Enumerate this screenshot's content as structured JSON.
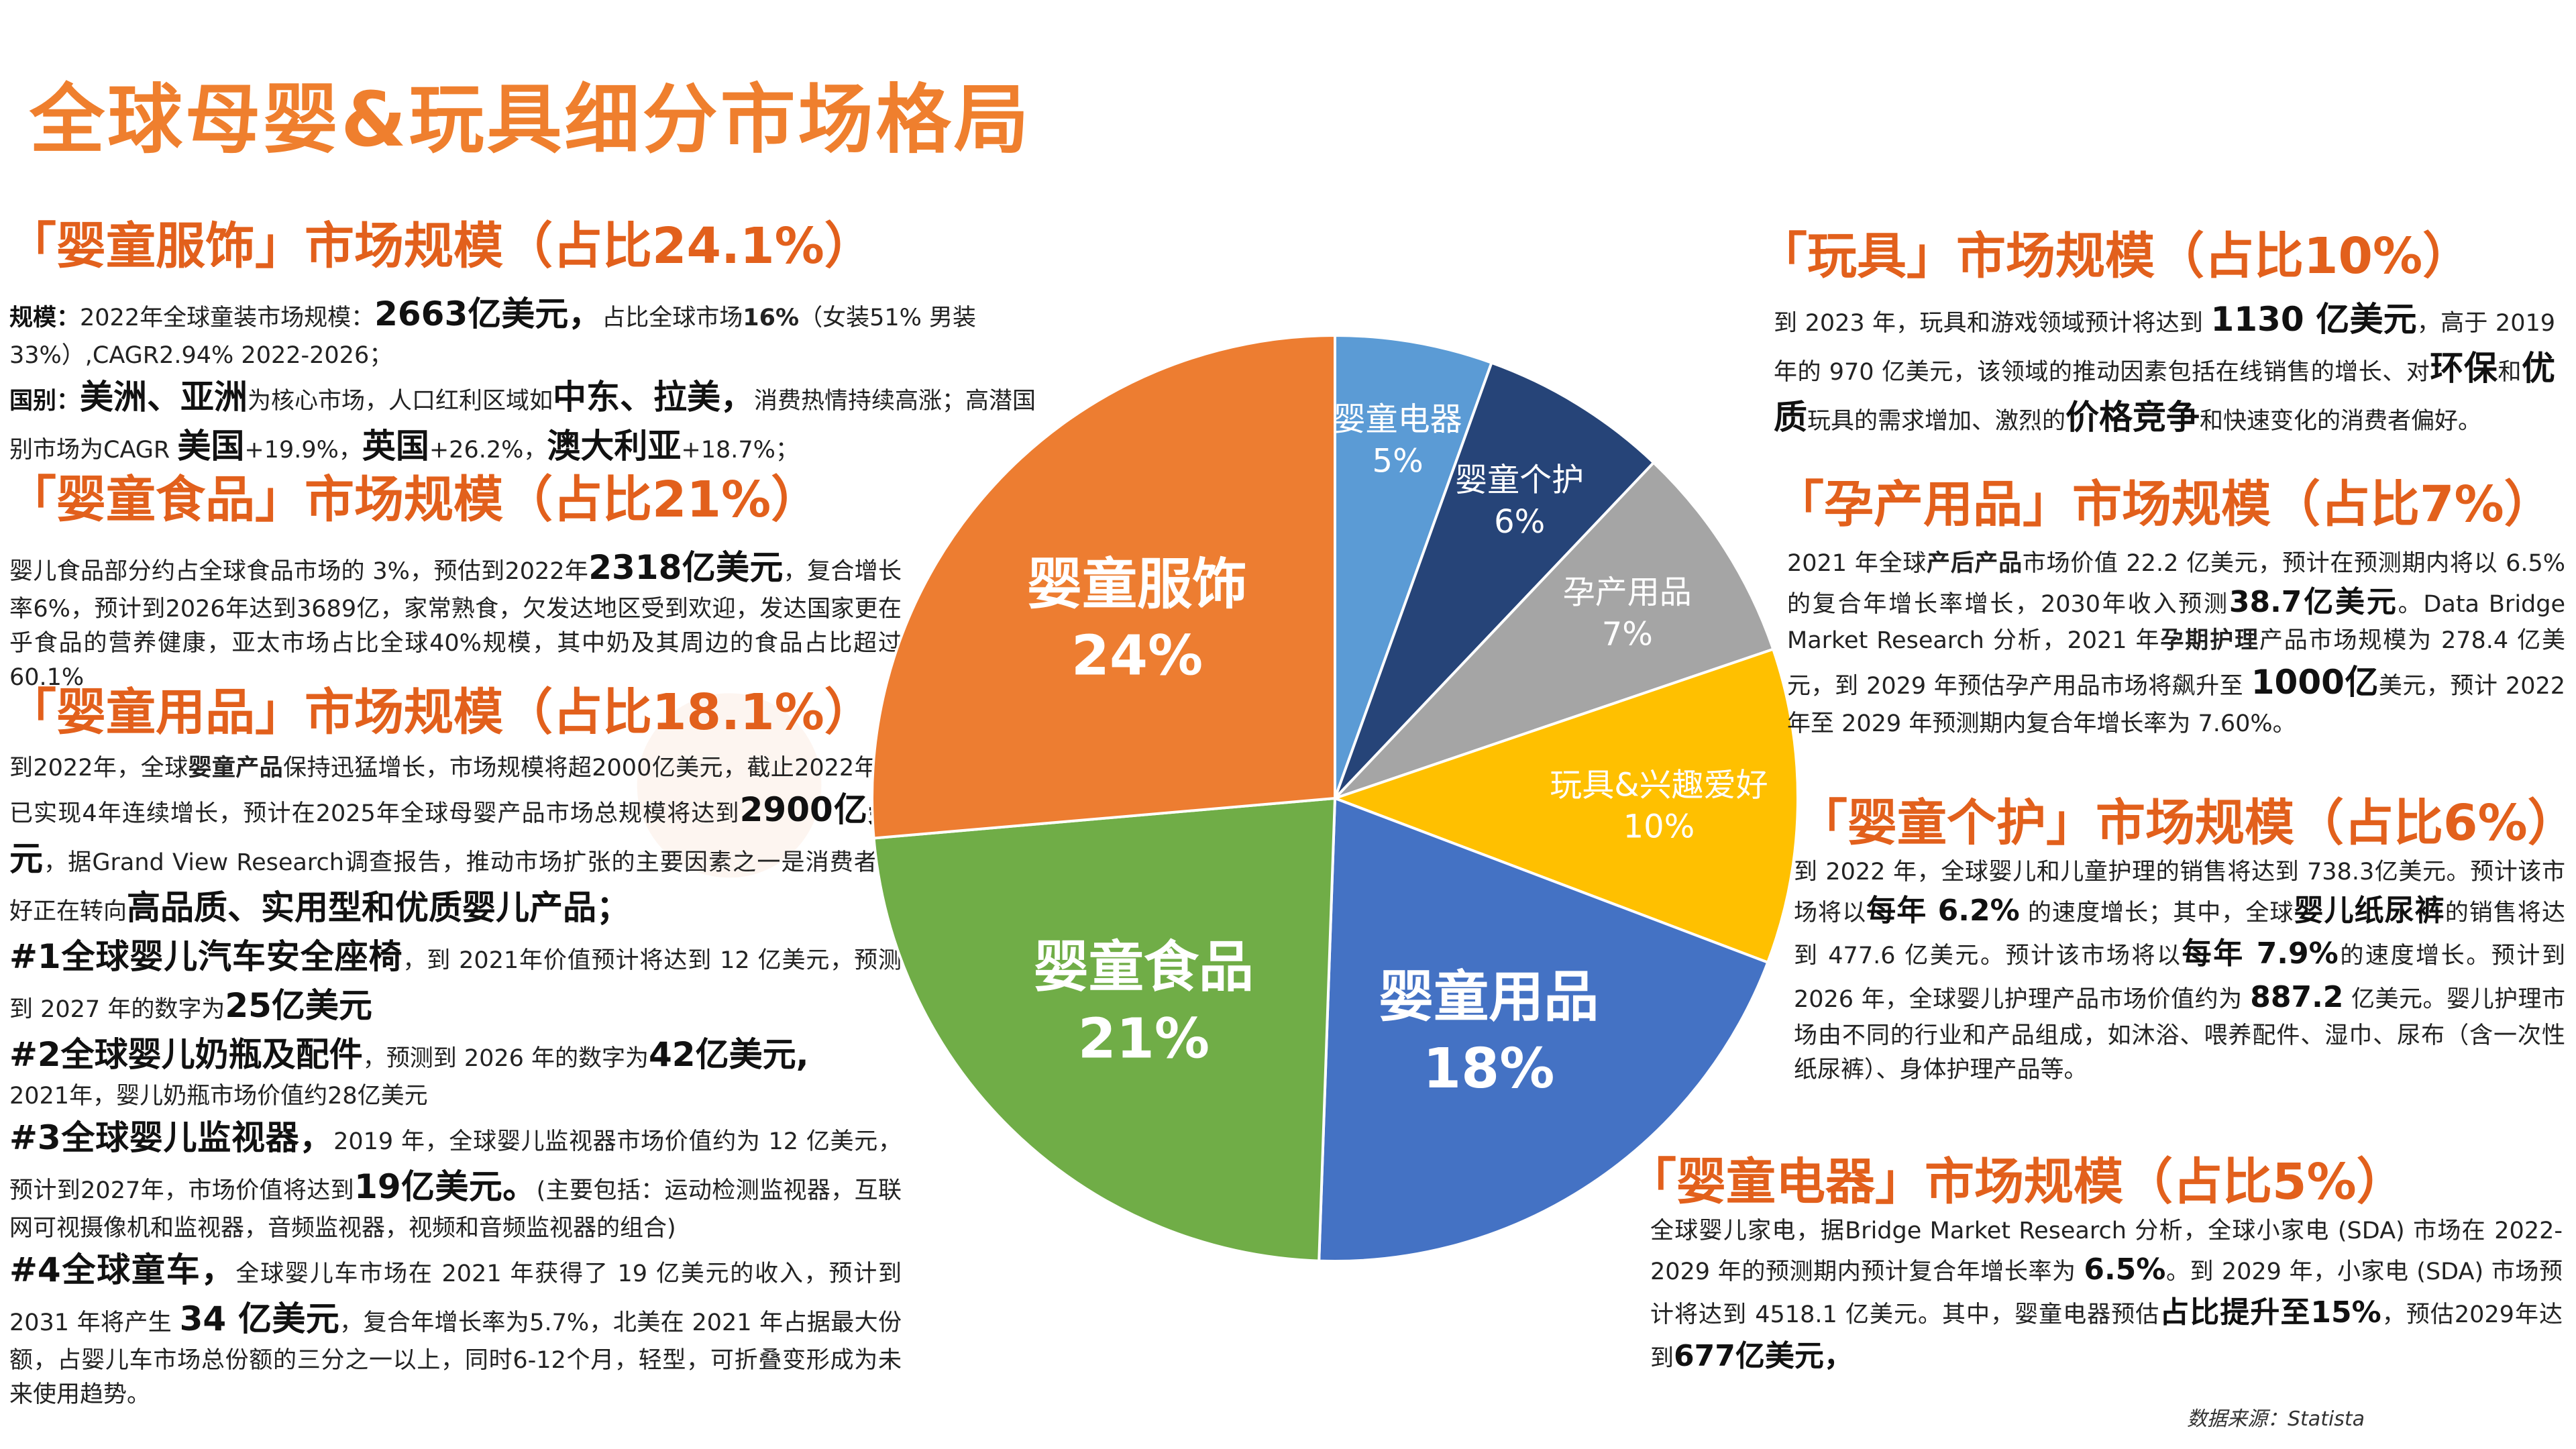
{
  "title": "全球母婴&玩具细分市场格局",
  "source": "数据来源：Statista",
  "colors": {
    "accent": "#e2601c",
    "title": "#ef7f2e"
  },
  "sections": {
    "apparel": {
      "heading": "「婴童服饰」市场规模（占比24.1%）",
      "p1": {
        "lead": "规模：",
        "t1": "2022年全球童装市场规模：",
        "big": "2663亿美元，",
        "t2": "占比全球市场",
        "pct": "16%",
        "t3": "（女装51% 男装33%）,CAGR2.94% 2022-2026；"
      },
      "p2": {
        "lead": "国别：",
        "b1": "美洲、亚洲",
        "t1": "为核心市场，人口红利区域如",
        "b2": "中东、拉美，",
        "t2": "消费热情持续高涨；高潜国别市场为CAGR ",
        "b3": "美国",
        "t3": "+19.9%，",
        "b4": "英国",
        "t4": "+26.2%，",
        "b5": "澳大利亚",
        "t5": "+18.7%；"
      }
    },
    "food": {
      "heading": "「婴童食品」市场规模（占比21%）",
      "t1": "婴儿食品部分约占全球食品市场的 3%，预估到2022年",
      "big": "2318亿美元",
      "t2": "，复合增长率6%，预计到2026年达到3689亿，家常熟食，欠发达地区受到欢迎，发达国家更在乎食品的营养健康，亚太市场占比全球40%规模，其中奶及其周边的食品占比超过60.1%"
    },
    "products": {
      "heading": "「婴童用品」市场规模（占比18.1%）",
      "t1": "到2022年，全球",
      "b1": "婴童产品",
      "t2": "保持迅猛增长，市场规模将超2000亿美元，截止2022年，已实现4年连续增长，预计在2025年全球母婴产品市场总规模将达到",
      "big1": "2900亿美元",
      "t3": "，据Grand View Research调查报告，推动市场扩张的主要因素之一是消费者偏好正在转向",
      "big2": "高品质、实用型和优质婴儿产品；",
      "items": [
        {
          "h": "#1全球婴儿汽车安全座椅",
          "t1": "，到 2021年价值预计将达到 12 亿美元，预测到 2027 年的数字为",
          "b": "25亿美元",
          "t2": ""
        },
        {
          "h": "#2全球婴儿奶瓶及配件",
          "t1": "，预测到 2026 年的数字为",
          "b": "42亿美元,",
          "t2": "2021年，婴儿奶瓶市场价值约28亿美元"
        },
        {
          "h": "#3全球婴儿监视器，",
          "t1": "2019 年，全球婴儿监视器市场价值约为 12 亿美元，预计到2027年，市场价值将达到",
          "b": "19亿美元。",
          "t2": "(主要包括：运动检测监视器，互联网可视摄像机和监视器，音频监视器，视频和音频监视器的组合)"
        },
        {
          "h": "#4全球童车，",
          "t1": "全球婴儿车市场在 2021 年获得了 19 亿美元的收入，预计到 2031 年将产生 ",
          "b": "34 亿美元",
          "t2": "，复合年增长率为5.7%，北美在 2021 年占据最大份额，占婴儿车市场总份额的三分之一以上，同时6-12个月，轻型，可折叠变形成为未来使用趋势。"
        }
      ]
    },
    "toys": {
      "heading": "「玩具」市场规模（占比10%）",
      "t1": "到 2023 年，玩具和游戏领域预计将达到 ",
      "big": "1130 亿美元",
      "t2": "，高于 2019 年的 970 亿美元，该领域的推动因素包括在线销售的增长、对",
      "b1": "环保",
      "t3": "和",
      "b2": "优质",
      "t4": "玩具的需求增加、激烈的",
      "b3": "价格竞争",
      "t5": "和快速变化的消费者偏好。"
    },
    "maternity": {
      "heading": "「孕产用品」市场规模（占比7%）",
      "t1": "2021 年全球",
      "b1": "产后产品",
      "t2": "市场价值 22.2 亿美元，预计在预测期内将以 6.5% 的复合年增长率增长，2030年收入预测",
      "mid1": "38.7亿美元",
      "t3": "。Data Bridge Market Research 分析，2021 年",
      "b2": "孕期护理",
      "t4": "产品市场规模为 278.4 亿美元，到 2029 年预估孕产用品市场将飙升至 ",
      "big": "1000亿",
      "t5": "美元，预计 2022 年至 2029 年预测期内复合年增长率为 7.60%。"
    },
    "care": {
      "heading": "「婴童个护」市场规模（占比6%）",
      "t1": "到 2022 年，全球婴儿和儿童护理的销售将达到 738.3亿美元。预计该市场将以",
      "mid1": "每年 6.2%",
      "t2": " 的速度增长；其中，全球",
      "mid2": "婴儿纸尿裤",
      "t3": "的销售将达到 477.6 亿美元。预计该市场将以",
      "mid3": "每年 7.9%",
      "t4": "的速度增长。预计到 2026 年，全球婴儿护理产品市场价值约为 ",
      "mid4": "887.2",
      "t5": " 亿美元。婴儿护理市场由不同的行业和产品组成，如沐浴、喂养配件、湿巾、尿布（含一次性纸尿裤）、身体护理产品等。"
    },
    "appliance": {
      "heading": "「婴童电器」市场规模（占比5%）",
      "t1": "全球婴儿家电，据Bridge Market Research 分析，全球小家电 (SDA) 市场在 2022-2029 年的预测期内预计复合年增长率为 ",
      "mid1": "6.5%",
      "t2": "。到 2029 年，小家电 (SDA) 市场预计将达到 4518.1 亿美元。其中，婴童电器预估",
      "mid2": "占比提升至15%",
      "t3": "，预估2029年达到",
      "mid3": "677亿美元，"
    }
  },
  "chart_data": {
    "type": "pie",
    "title": "",
    "slices": [
      {
        "label": "婴童电器",
        "pct_label": "5%",
        "value": 5,
        "color": "#5b9bd5"
      },
      {
        "label": "婴童个护",
        "pct_label": "6%",
        "value": 6,
        "color": "#264478"
      },
      {
        "label": "孕产用品",
        "pct_label": "7%",
        "value": 7,
        "color": "#a5a5a5"
      },
      {
        "label": "玩具&兴趣爱好",
        "pct_label": "10%",
        "value": 10,
        "color": "#ffc000"
      },
      {
        "label": "婴童用品",
        "pct_label": "18%",
        "value": 18,
        "color": "#4472c4"
      },
      {
        "label": "婴童食品",
        "pct_label": "21%",
        "value": 21,
        "color": "#70ad47"
      },
      {
        "label": "婴童服饰",
        "pct_label": "24%",
        "value": 24,
        "color": "#ed7d31"
      }
    ],
    "start": "12 o'clock",
    "direction": "clockwise"
  }
}
